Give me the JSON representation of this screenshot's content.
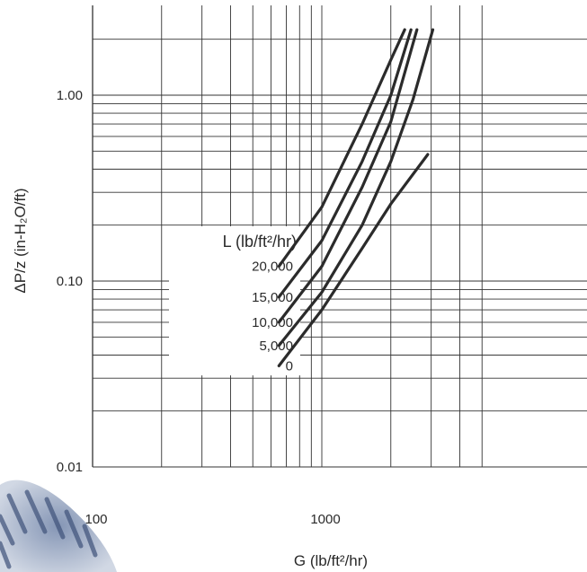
{
  "chart_data": {
    "type": "line",
    "xscale": "log",
    "yscale": "log",
    "xlim": [
      100,
      5000
    ],
    "ylim": [
      0.01,
      2.5
    ],
    "x_ticks": [
      {
        "value": 100,
        "label": "100"
      },
      {
        "value": 1000,
        "label": "1000"
      }
    ],
    "y_ticks": [
      {
        "value": 0.01,
        "label": "0.01"
      },
      {
        "value": 0.1,
        "label": "0.10"
      },
      {
        "value": 1,
        "label": "1.00"
      }
    ],
    "xlabel": "G (lb/ft²/hr)",
    "ylabel": "ΔP/z (in-H₂O/ft)",
    "grid": true,
    "legend": {
      "title": "L (lb/ft²/hr)",
      "placement": "center-left",
      "entries": [
        "20,000",
        "15,000",
        "10,000",
        "5,000",
        "0"
      ]
    },
    "series": [
      {
        "name": "20,000",
        "x": [
          650,
          1000,
          1500,
          2000,
          2300
        ],
        "y": [
          0.12,
          0.25,
          0.7,
          1.55,
          2.25
        ]
      },
      {
        "name": "15,000",
        "x": [
          650,
          1000,
          1500,
          2000,
          2450
        ],
        "y": [
          0.082,
          0.165,
          0.44,
          1.0,
          2.25
        ]
      },
      {
        "name": "10,000",
        "x": [
          650,
          1000,
          1500,
          2000,
          2600
        ],
        "y": [
          0.06,
          0.12,
          0.32,
          0.72,
          2.25
        ]
      },
      {
        "name": "5,000",
        "x": [
          650,
          1000,
          1500,
          2000,
          2500,
          3050
        ],
        "y": [
          0.045,
          0.087,
          0.2,
          0.44,
          0.95,
          2.25
        ]
      },
      {
        "name": "0",
        "x": [
          650,
          1000,
          1500,
          2000,
          2900
        ],
        "y": [
          0.035,
          0.07,
          0.15,
          0.26,
          0.48
        ]
      }
    ]
  }
}
